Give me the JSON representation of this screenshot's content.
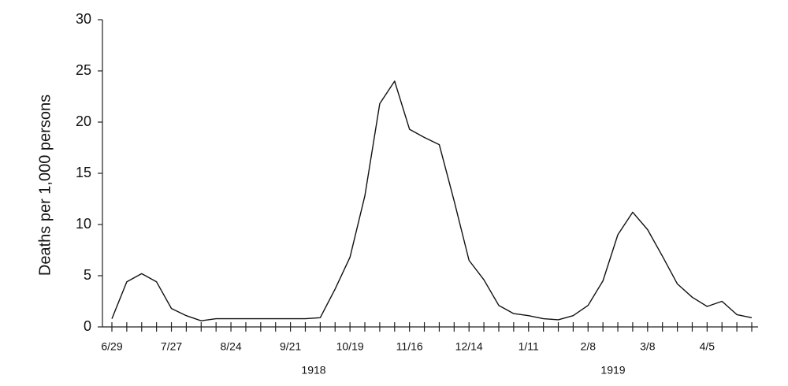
{
  "chart_data": {
    "type": "line",
    "y_label": "Deaths per 1,000 persons",
    "categories": [
      "6/29",
      null,
      null,
      null,
      "7/27",
      null,
      null,
      null,
      "8/24",
      null,
      null,
      null,
      "9/21",
      null,
      null,
      null,
      "10/19",
      null,
      null,
      null,
      "11/16",
      null,
      null,
      null,
      "12/14",
      null,
      null,
      null,
      "1/11",
      null,
      null,
      null,
      "2/8",
      null,
      null,
      null,
      "3/8",
      null,
      null,
      null,
      "4/5",
      null,
      null,
      null
    ],
    "values": [
      0.8,
      4.4,
      5.2,
      4.4,
      1.8,
      1.1,
      0.6,
      0.8,
      0.8,
      0.8,
      0.8,
      0.8,
      0.8,
      0.8,
      0.9,
      3.7,
      6.8,
      12.8,
      21.8,
      24.0,
      19.3,
      18.5,
      17.8,
      12.3,
      6.5,
      4.6,
      2.1,
      1.3,
      1.1,
      0.8,
      0.7,
      1.1,
      2.1,
      4.5,
      9.0,
      11.2,
      9.5,
      6.9,
      4.2,
      2.9,
      2.0,
      2.5,
      1.2,
      0.9
    ],
    "color": "#111111",
    "year_labels": [
      "1918",
      "1919"
    ],
    "ylim": [
      0,
      30
    ],
    "yticks": [
      0,
      5,
      10,
      15,
      20,
      25,
      30
    ],
    "grid": false
  }
}
